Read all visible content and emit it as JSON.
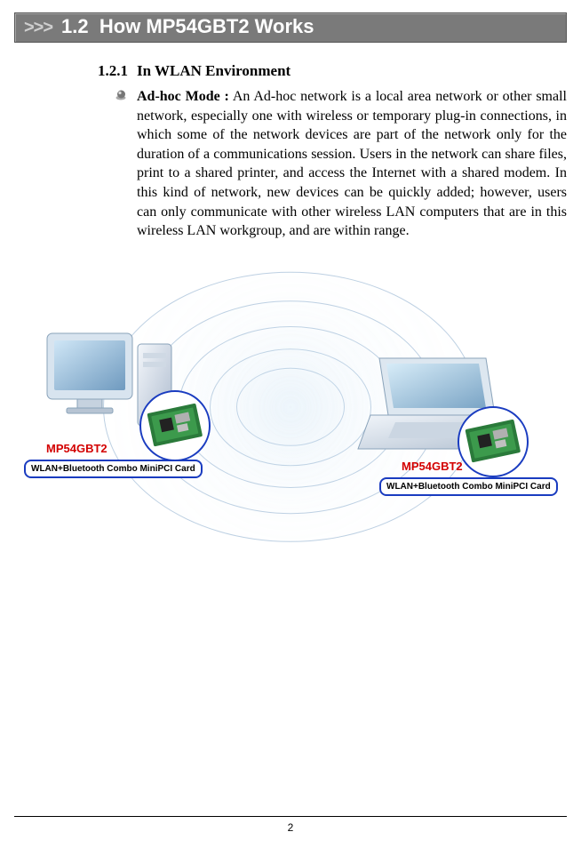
{
  "header": {
    "chevrons": ">>>",
    "number": "1.2",
    "title": "How MP54GBT2 Works"
  },
  "section": {
    "number": "1.2.1",
    "title": "In WLAN Environment",
    "lead": "Ad-hoc Mode :",
    "body": " An Ad-hoc network is a local area network or other small network, especially one with wireless or temporary plug-in connections, in which some of the network devices are part of the network only for the duration of a communications session.  Users in the network can share files, print to a shared printer, and access the Internet with a shared modem.  In this kind of network, new devices can be quickly added; however, users can only communicate with other wireless LAN computers that are in this wireless LAN workgroup, and are within range."
  },
  "diagram": {
    "product_label": "MP54GBT2",
    "callout": "WLAN+Bluetooth Combo MiniPCI Card",
    "colors": {
      "product_label": "#d30000",
      "callout_border": "#1a3cc0",
      "wave_border": "#88aacc"
    },
    "ring_sizes": [
      120,
      180,
      250,
      330,
      420
    ]
  },
  "footer": {
    "page": "2"
  }
}
